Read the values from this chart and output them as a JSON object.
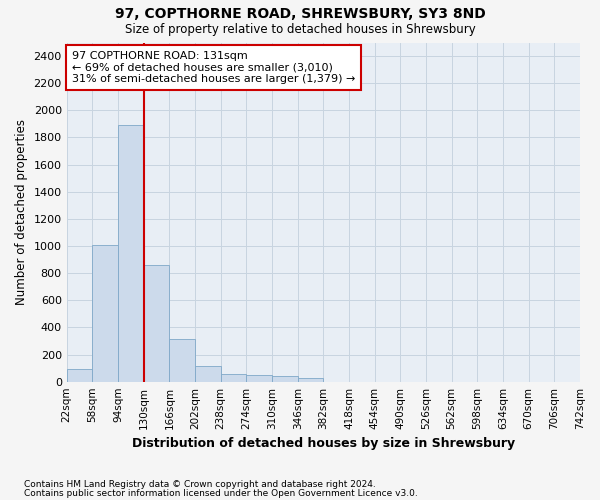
{
  "title1": "97, COPTHORNE ROAD, SHREWSBURY, SY3 8ND",
  "title2": "Size of property relative to detached houses in Shrewsbury",
  "xlabel": "Distribution of detached houses by size in Shrewsbury",
  "ylabel": "Number of detached properties",
  "footnote1": "Contains HM Land Registry data © Crown copyright and database right 2024.",
  "footnote2": "Contains public sector information licensed under the Open Government Licence v3.0.",
  "annotation_line1": "97 COPTHORNE ROAD: 131sqm",
  "annotation_line2": "← 69% of detached houses are smaller (3,010)",
  "annotation_line3": "31% of semi-detached houses are larger (1,379) →",
  "bin_edges": [
    22,
    58,
    94,
    130,
    166,
    202,
    238,
    274,
    310,
    346,
    382,
    418,
    454,
    490,
    526,
    562,
    598,
    634,
    670,
    706,
    742
  ],
  "bin_labels": [
    "22sqm",
    "58sqm",
    "94sqm",
    "130sqm",
    "166sqm",
    "202sqm",
    "238sqm",
    "274sqm",
    "310sqm",
    "346sqm",
    "382sqm",
    "418sqm",
    "454sqm",
    "490sqm",
    "526sqm",
    "562sqm",
    "598sqm",
    "634sqm",
    "670sqm",
    "706sqm",
    "742sqm"
  ],
  "bar_values": [
    95,
    1010,
    1895,
    860,
    315,
    115,
    60,
    50,
    40,
    25,
    0,
    0,
    0,
    0,
    0,
    0,
    0,
    0,
    0,
    0
  ],
  "bar_color": "#ccdaeb",
  "bar_edge_color": "#7fa8c8",
  "vline_x": 130,
  "vline_color": "#cc0000",
  "annotation_box_color": "#cc0000",
  "ylim": [
    0,
    2500
  ],
  "yticks": [
    0,
    200,
    400,
    600,
    800,
    1000,
    1200,
    1400,
    1600,
    1800,
    2000,
    2200,
    2400
  ],
  "grid_color": "#c8d4e0",
  "bg_color": "#e8eef5",
  "fig_bg_color": "#f5f5f5"
}
